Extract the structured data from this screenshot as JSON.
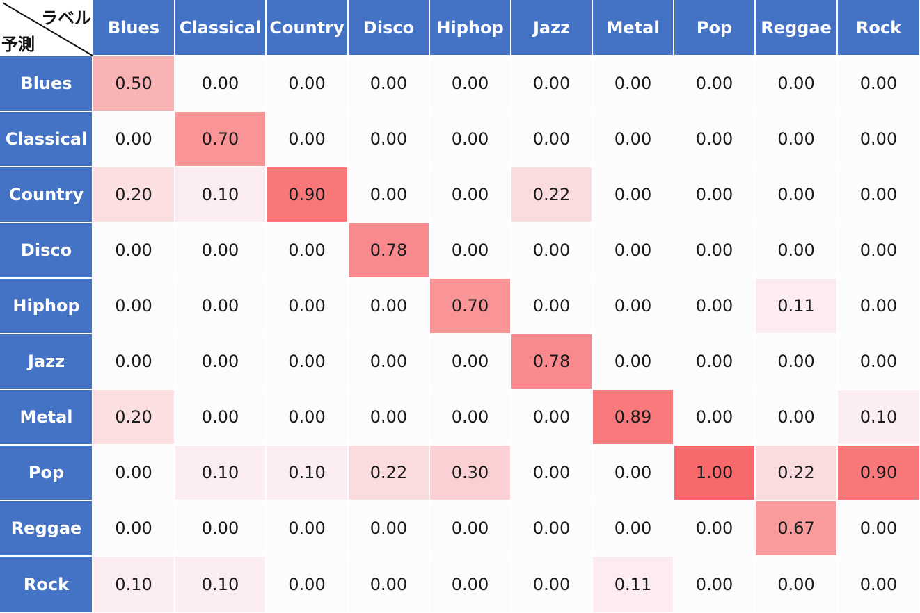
{
  "chart_data": {
    "type": "heatmap",
    "corner": {
      "column_axis_label": "ラベル",
      "row_axis_label": "予測"
    },
    "columns": [
      "Blues",
      "Classical",
      "Country",
      "Disco",
      "Hiphop",
      "Jazz",
      "Metal",
      "Pop",
      "Reggae",
      "Rock"
    ],
    "rows": [
      "Blues",
      "Classical",
      "Country",
      "Disco",
      "Hiphop",
      "Jazz",
      "Metal",
      "Pop",
      "Reggae",
      "Rock"
    ],
    "values": [
      [
        0.5,
        0.0,
        0.0,
        0.0,
        0.0,
        0.0,
        0.0,
        0.0,
        0.0,
        0.0
      ],
      [
        0.0,
        0.7,
        0.0,
        0.0,
        0.0,
        0.0,
        0.0,
        0.0,
        0.0,
        0.0
      ],
      [
        0.2,
        0.1,
        0.9,
        0.0,
        0.0,
        0.22,
        0.0,
        0.0,
        0.0,
        0.0
      ],
      [
        0.0,
        0.0,
        0.0,
        0.78,
        0.0,
        0.0,
        0.0,
        0.0,
        0.0,
        0.0
      ],
      [
        0.0,
        0.0,
        0.0,
        0.0,
        0.7,
        0.0,
        0.0,
        0.0,
        0.11,
        0.0
      ],
      [
        0.0,
        0.0,
        0.0,
        0.0,
        0.0,
        0.78,
        0.0,
        0.0,
        0.0,
        0.0
      ],
      [
        0.2,
        0.0,
        0.0,
        0.0,
        0.0,
        0.0,
        0.89,
        0.0,
        0.0,
        0.1
      ],
      [
        0.0,
        0.1,
        0.1,
        0.22,
        0.3,
        0.0,
        0.0,
        1.0,
        0.22,
        0.9
      ],
      [
        0.0,
        0.0,
        0.0,
        0.0,
        0.0,
        0.0,
        0.0,
        0.0,
        0.67,
        0.0
      ],
      [
        0.1,
        0.1,
        0.0,
        0.0,
        0.0,
        0.0,
        0.11,
        0.0,
        0.0,
        0.0
      ]
    ],
    "value_range": [
      0,
      1
    ],
    "colors": {
      "header_background": "#4472c4",
      "header_text": "#ffffff",
      "scale_low": "#fcfcff",
      "scale_high": "#f8696b",
      "cell_text": "#1a1a1a",
      "grid_line": "#ffffff"
    }
  }
}
